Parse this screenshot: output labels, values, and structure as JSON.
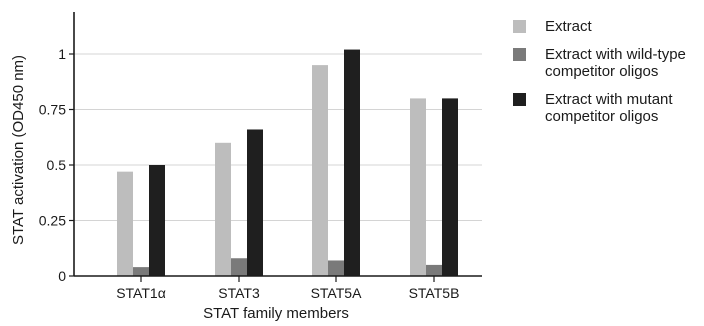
{
  "chart_data": {
    "type": "bar",
    "categories": [
      "STAT1α",
      "STAT3",
      "STAT5A",
      "STAT5B"
    ],
    "series": [
      {
        "name": "Extract",
        "values": [
          0.47,
          0.6,
          0.95,
          0.8
        ],
        "color": "#bdbdbd"
      },
      {
        "name": "Extract with wild-type\ncompetitor oligos",
        "values": [
          0.04,
          0.08,
          0.07,
          0.05
        ],
        "color": "#7a7a7a"
      },
      {
        "name": "Extract with mutant\ncompetitor oligos",
        "values": [
          0.5,
          0.66,
          1.02,
          0.8
        ],
        "color": "#1f1f1f"
      }
    ],
    "yticks": [
      "0",
      "0.25",
      "0.5",
      "0.75",
      "1"
    ],
    "ylim": [
      0,
      1.2
    ],
    "xlabel": "STAT family members",
    "ylabel": "STAT activation (OD450 nm)",
    "grid": true,
    "legend_position": "right"
  }
}
